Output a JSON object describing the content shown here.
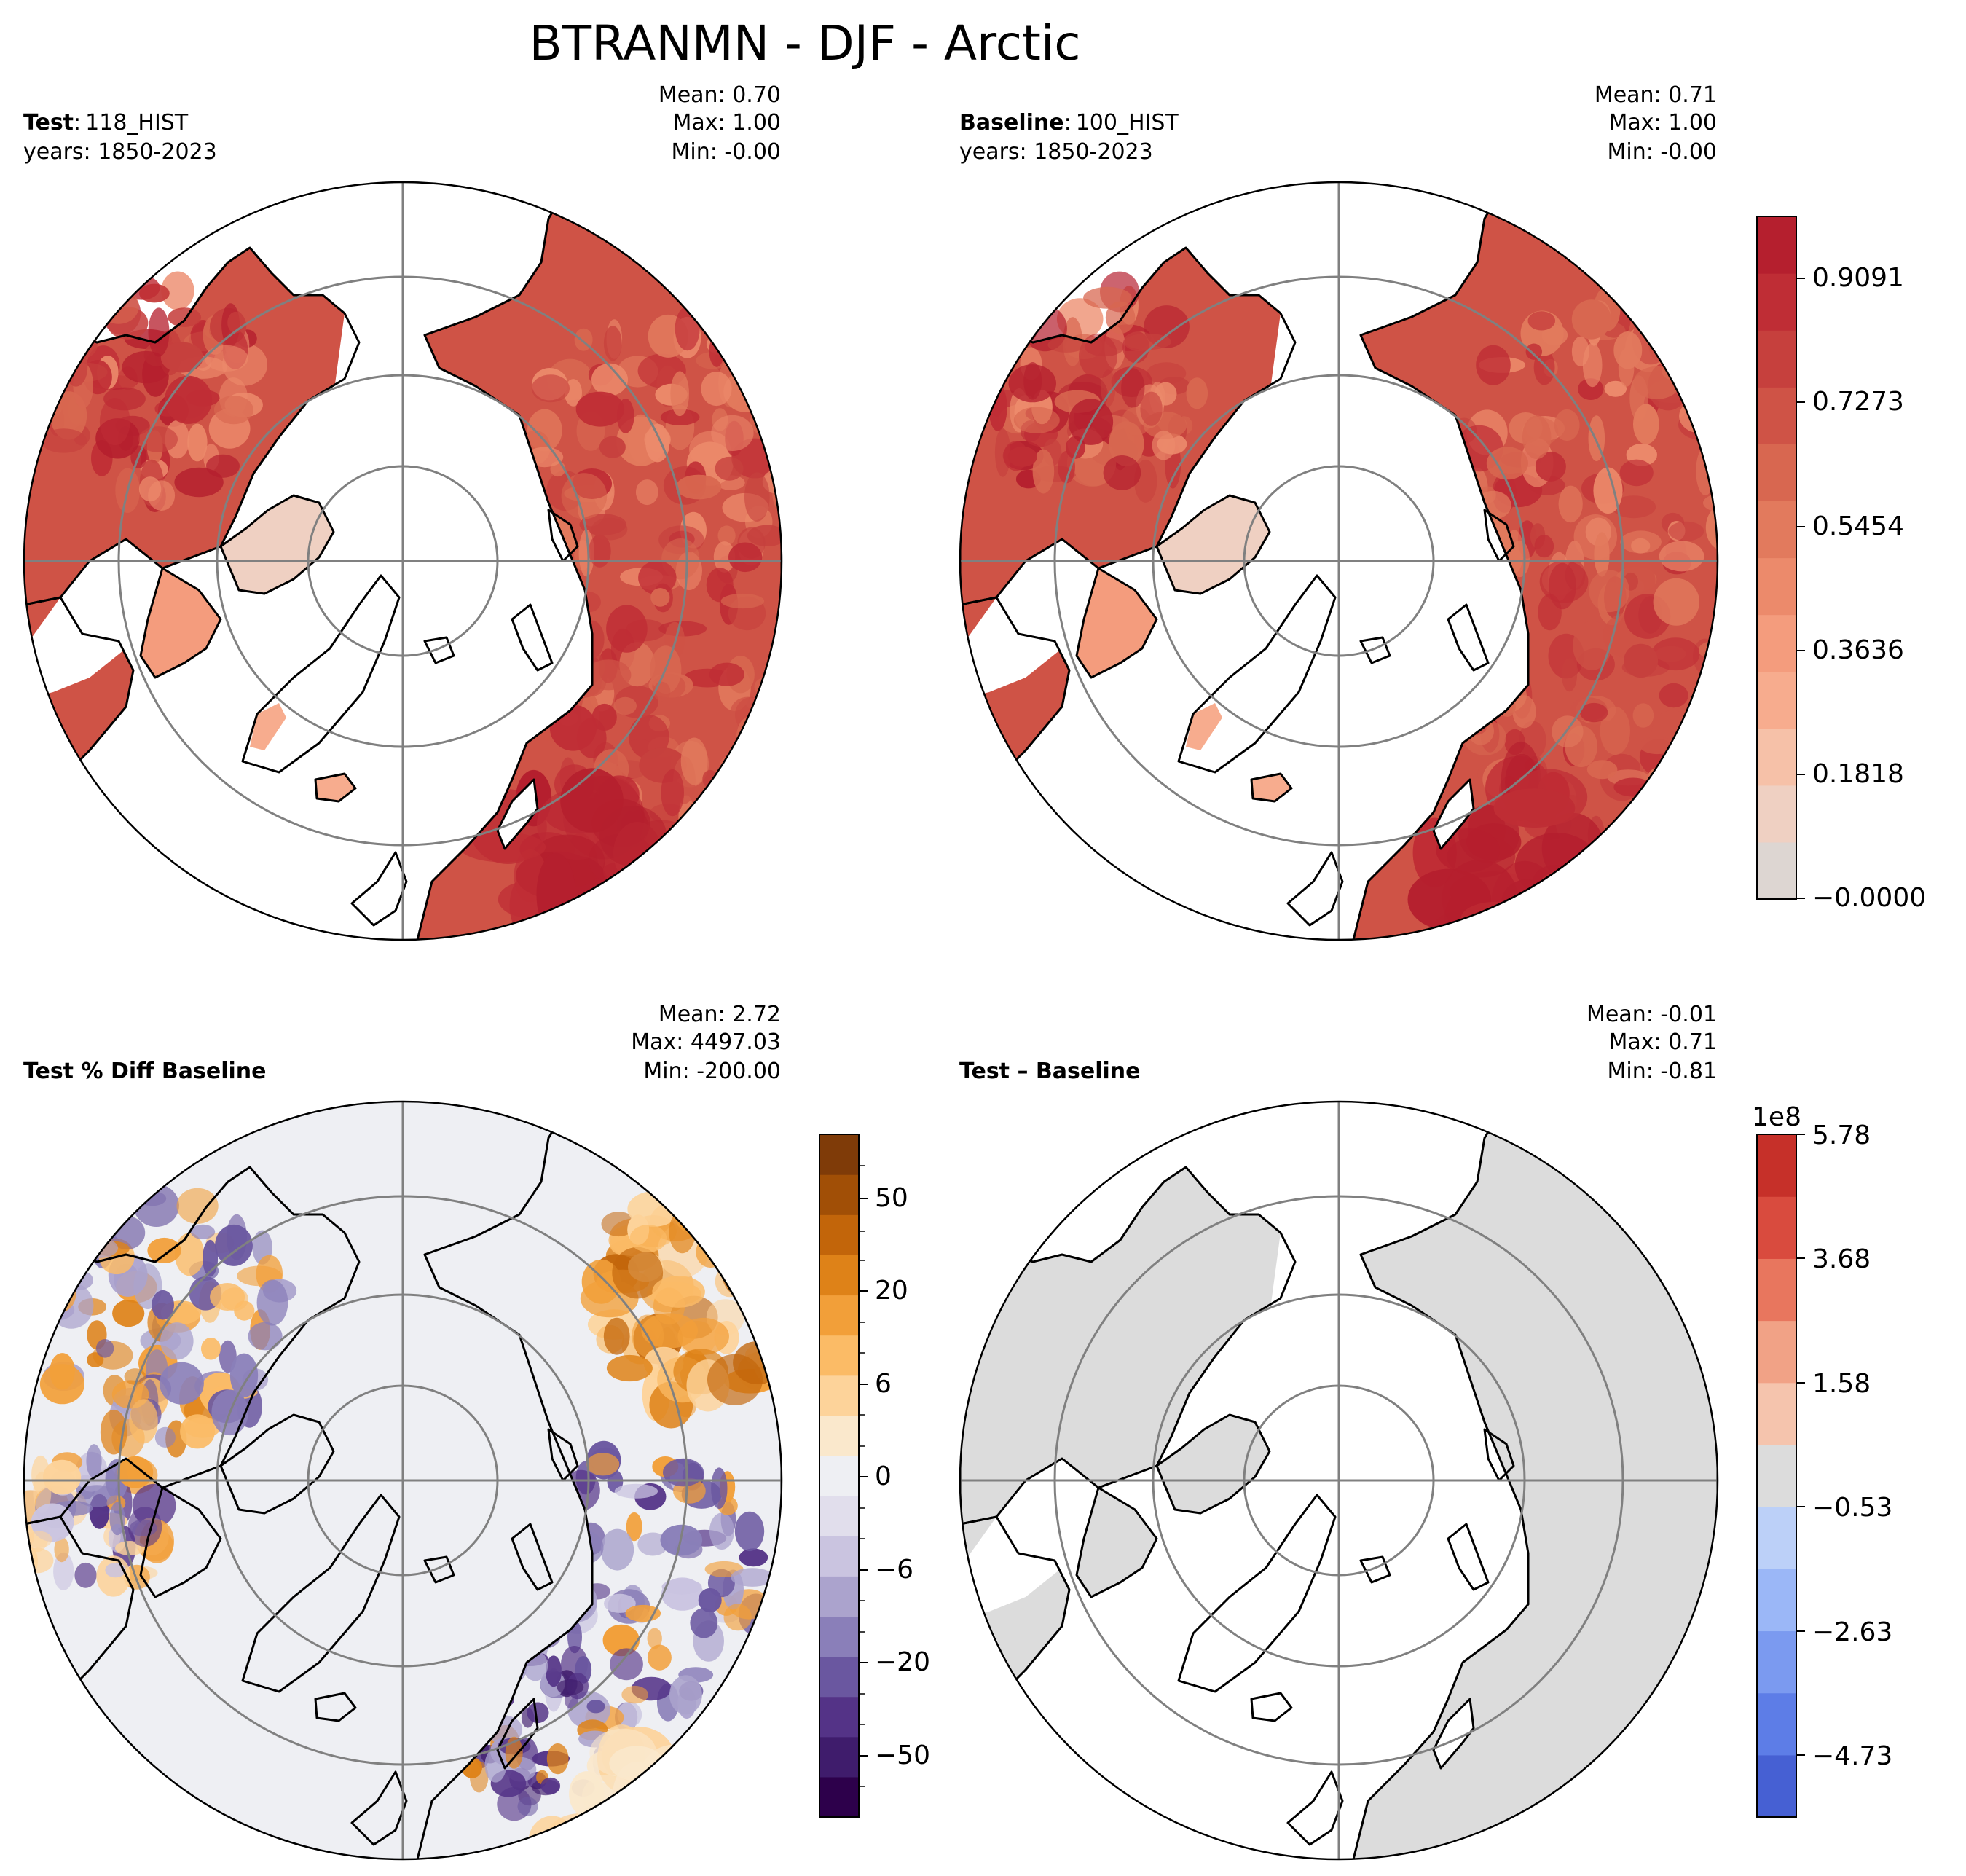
{
  "title": "BTRANMN - DJF - Arctic",
  "panels": [
    {
      "id": "test",
      "label_bold": "Test",
      "label_sep": ":",
      "label_rest": "118_HIST",
      "years": "years: 1850-2023",
      "stats": [
        "Mean:  0.70",
        "Max:  1.00",
        "Min: -0.00"
      ],
      "field": "test"
    },
    {
      "id": "baseline",
      "label_bold": "Baseline",
      "label_sep": ":",
      "label_rest": "100_HIST",
      "years": "years: 1850-2023",
      "stats": [
        "Mean:  0.71",
        "Max:  1.00",
        "Min: -0.00"
      ],
      "field": "baseline"
    },
    {
      "id": "pctdiff",
      "label_bold": "Test % Diff Baseline",
      "label_sep": "",
      "label_rest": "",
      "years": "",
      "stats": [
        "Mean:  2.72",
        "Max: 4497.03",
        "Min: -200.00"
      ],
      "field": "pctdiff"
    },
    {
      "id": "diff",
      "label_bold": "Test – Baseline",
      "label_sep": "",
      "label_rest": "",
      "years": "",
      "stats": [
        "Mean: -0.01",
        "Max:  0.71",
        "Min: -0.81"
      ],
      "field": "diff"
    }
  ],
  "colorbars": {
    "main": {
      "ticks": [
        "0.9091",
        "0.7273",
        "0.5454",
        "0.3636",
        "0.1818",
        "−0.0000"
      ],
      "colors": [
        "#ddd6d2",
        "#efd0c2",
        "#f6c1a8",
        "#f7ac8e",
        "#f49c7d",
        "#ec8a6b",
        "#e27a5d",
        "#d86750",
        "#cf5346",
        "#c6403d",
        "#bf2d35",
        "#b51f2e"
      ]
    },
    "pctdiff": {
      "ticks": [
        "50",
        "20",
        "6",
        "0",
        "−6",
        "−20",
        "−50"
      ],
      "colors": [
        "#2d004b",
        "#3f1c6c",
        "#543387",
        "#6a57a0",
        "#8a7fb9",
        "#aba3cd",
        "#cac4e0",
        "#e1deec",
        "#eeeff3",
        "#fae8cc",
        "#fdd39a",
        "#fbbb66",
        "#f29f39",
        "#de8218",
        "#c2650a",
        "#a14f06",
        "#7f3b08"
      ]
    },
    "diff": {
      "exponent": "1e8",
      "ticks": [
        "5.78",
        "3.68",
        "1.58",
        "−0.53",
        "−2.63",
        "−4.73"
      ],
      "colors": [
        "#4660d3",
        "#5d7de7",
        "#7b9af0",
        "#9bb7f7",
        "#bcd0f8",
        "#dcdcdc",
        "#f5c4ad",
        "#f1a286",
        "#e8765e",
        "#d94b3e",
        "#c63029"
      ]
    }
  }
}
